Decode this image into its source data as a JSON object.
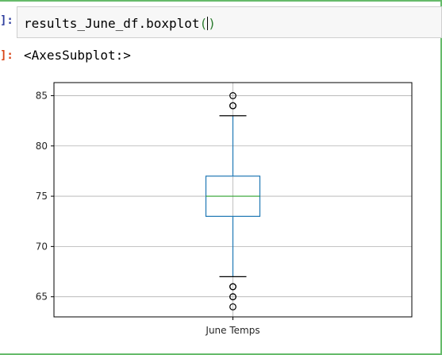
{
  "cell": {
    "input_prompt": "]:",
    "output_prompt": "]:",
    "code_prefix": "results_June_df.boxplot",
    "code_open_paren": "(",
    "code_close_paren": ")",
    "output_repr": "<AxesSubplot:>"
  },
  "colors": {
    "box": "#1f77b4",
    "median": "#2ca02c",
    "whisker": "#1f77b4",
    "cap": "#000000",
    "flier": "#000000",
    "grid": "#b0b0b0",
    "cell_border": "#66bb6a"
  },
  "chart_data": {
    "type": "boxplot",
    "categories": [
      "June Temps"
    ],
    "stats": {
      "min_whisker": 67,
      "q1": 73,
      "median": 75,
      "q3": 77,
      "max_whisker": 83
    },
    "outliers": [
      64,
      65,
      65,
      66,
      66,
      84,
      84,
      85
    ],
    "yticks": [
      65,
      70,
      75,
      80,
      85
    ],
    "ylim": [
      63,
      86.3
    ],
    "grid": true,
    "title": "",
    "xlabel": "",
    "ylabel": ""
  }
}
